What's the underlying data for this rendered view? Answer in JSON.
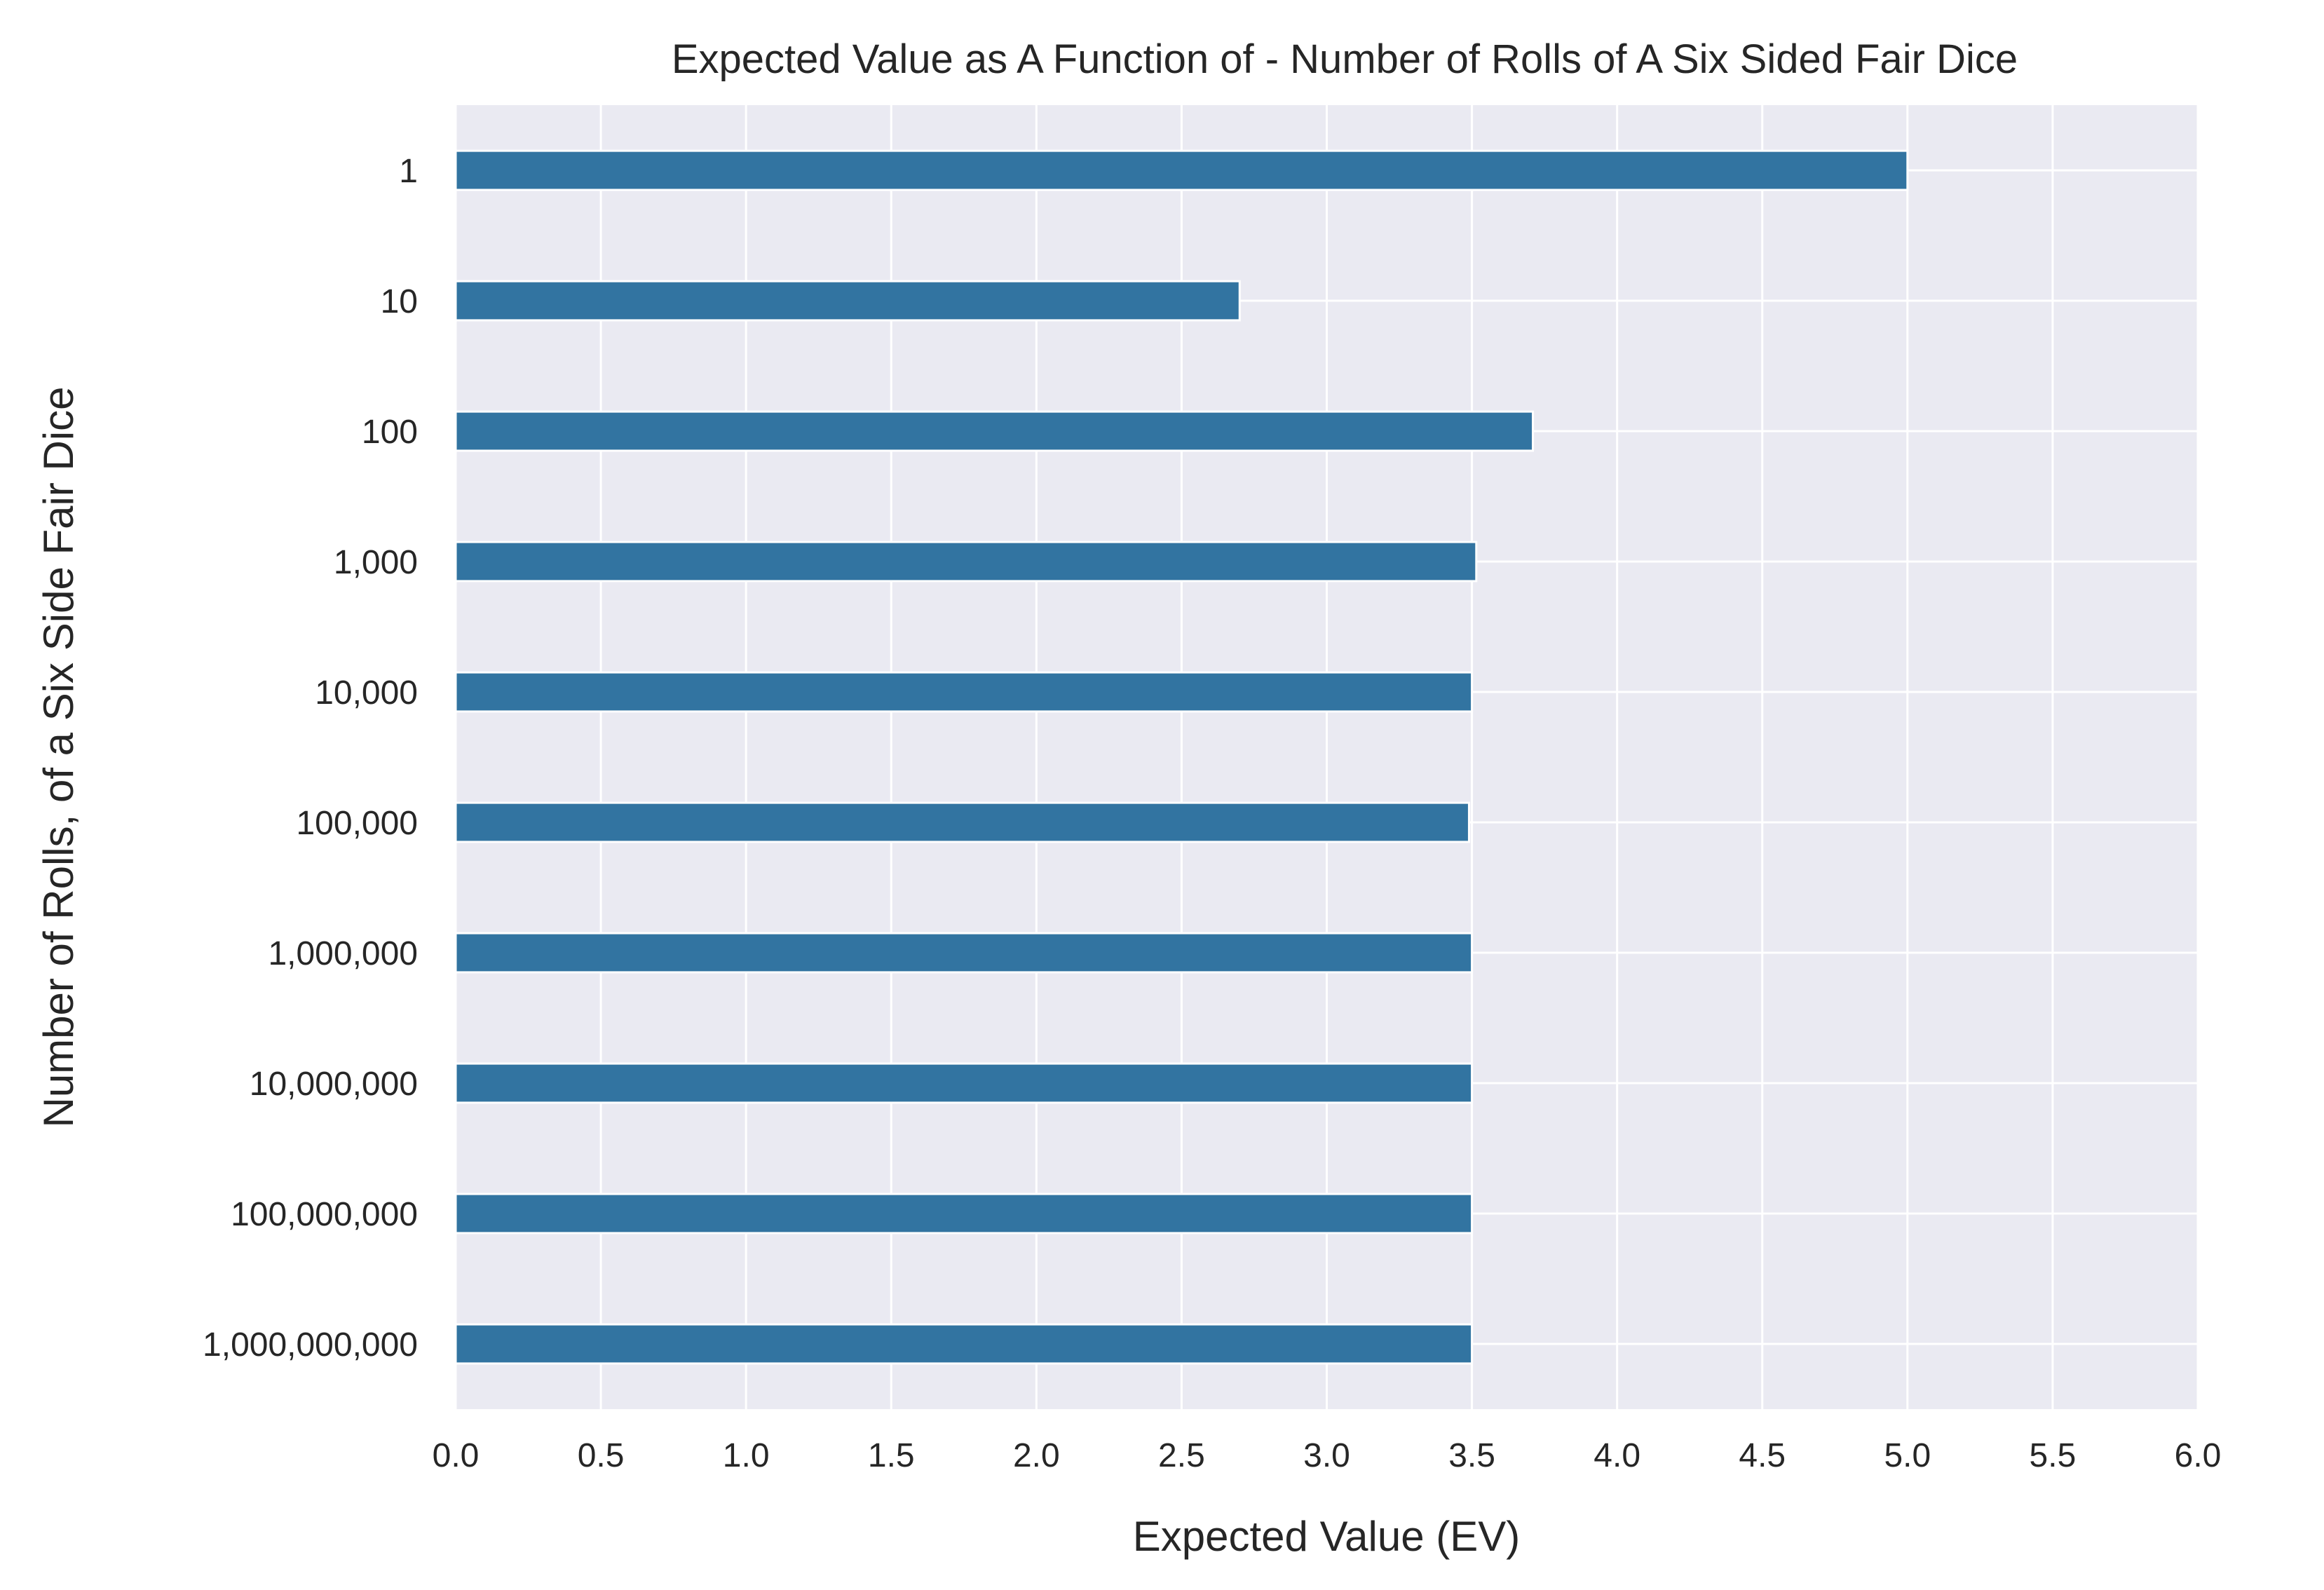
{
  "chart_data": {
    "type": "bar",
    "orientation": "horizontal",
    "title": "Expected Value as A Function of - Number of Rolls of A Six Sided Fair Dice",
    "xlabel": "Expected Value (EV)",
    "ylabel": "Number of Rolls, of a Six Side Fair Dice",
    "xlim": [
      0,
      6
    ],
    "xticks": [
      "0.0",
      "0.5",
      "1.0",
      "1.5",
      "2.0",
      "2.5",
      "3.0",
      "3.5",
      "4.0",
      "4.5",
      "5.0",
      "5.5",
      "6.0"
    ],
    "categories": [
      "1",
      "10",
      "100",
      "1,000",
      "10,000",
      "100,000",
      "1,000,000",
      "10,000,000",
      "100,000,000",
      "1,000,000,000"
    ],
    "values": [
      5.0,
      2.7,
      3.71,
      3.515,
      3.5,
      3.49,
      3.5,
      3.5,
      3.5,
      3.5
    ],
    "grid": true,
    "colors": {
      "bar": "#3274a1",
      "background": "#eaeaf2",
      "grid": "#ffffff"
    }
  }
}
